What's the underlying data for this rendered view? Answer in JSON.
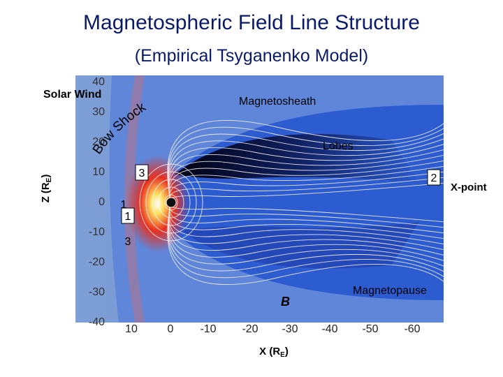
{
  "header": {
    "title": "Magnetospheric Field Line Structure",
    "subtitle": "(Empirical Tsyganenko Model)"
  },
  "image": {
    "y_ticks": [
      40,
      30,
      20,
      10,
      0,
      -10,
      -20,
      -30,
      -40
    ],
    "x_ticks": [
      10,
      0,
      -10,
      -20,
      -30,
      -40,
      -50,
      -60
    ],
    "labels": {
      "solar_wind": "Solar Wind",
      "magnetosheath": "Magnetosheath",
      "bow_shock": "Bow Shock",
      "lobes": "Lobes",
      "magnetopause": "Magnetopause",
      "b": "B"
    },
    "markers": [
      "3",
      "2",
      "1",
      "1",
      "3"
    ],
    "x_point": "X-point",
    "z_axis": {
      "prefix": "Z (R",
      "sub": "E",
      "suffix": ")"
    },
    "x_axis": {
      "prefix": "X (R",
      "sub": "E",
      "suffix": ")"
    }
  }
}
